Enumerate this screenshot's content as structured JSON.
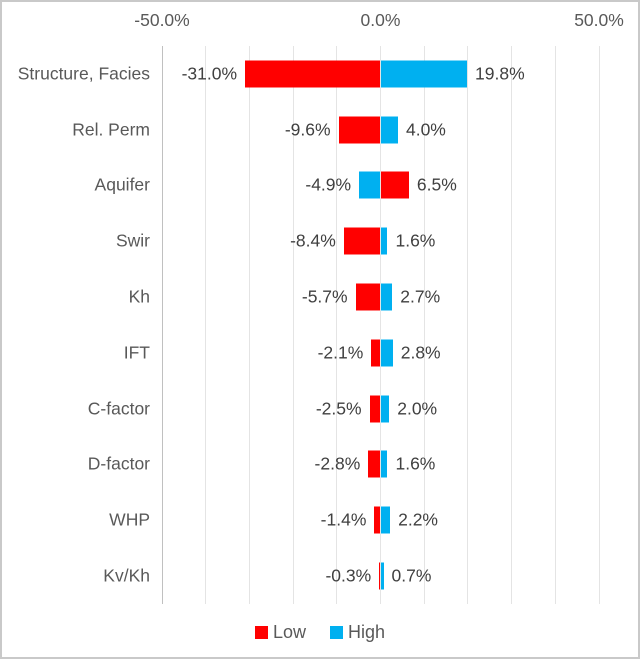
{
  "chart_data": {
    "type": "bar",
    "subtype": "tornado",
    "orientation": "horizontal",
    "title": "",
    "categories": [
      "Structure, Facies",
      "Rel. Perm",
      "Aquifer",
      "Swir",
      "Kh",
      "IFT",
      "C-factor",
      "D-factor",
      "WHP",
      "Kv/Kh"
    ],
    "series": [
      {
        "name": "Low",
        "color": "#ff0000",
        "values": [
          -31.0,
          -9.6,
          6.5,
          -8.4,
          -5.7,
          -2.1,
          -2.5,
          -2.8,
          -1.4,
          -0.3
        ]
      },
      {
        "name": "High",
        "color": "#00b0f0",
        "values": [
          19.8,
          4.0,
          -4.9,
          1.6,
          2.7,
          2.8,
          2.0,
          1.6,
          2.2,
          0.7
        ]
      }
    ],
    "data_labels": {
      "negative_side": [
        "-31.0%",
        "-9.6%",
        "-4.9%",
        "-8.4%",
        "-5.7%",
        "-2.1%",
        "-2.5%",
        "-2.8%",
        "-1.4%",
        "-0.3%"
      ],
      "positive_side": [
        "19.8%",
        "4.0%",
        "6.5%",
        "1.6%",
        "2.7%",
        "2.8%",
        "2.0%",
        "1.6%",
        "2.2%",
        "0.7%"
      ]
    },
    "x_axis": {
      "min": -50,
      "max": 50,
      "gridline_step": 10,
      "tick_labels": [
        "-50.0%",
        "0.0%",
        "50.0%"
      ],
      "tick_values": [
        -50,
        0,
        50
      ],
      "position": "top"
    },
    "legend": {
      "position": "bottom",
      "items": [
        {
          "label": "Low",
          "color": "#ff0000"
        },
        {
          "label": "High",
          "color": "#00b0f0"
        }
      ]
    },
    "grid": "vertical-only",
    "colors": {
      "low": "#ff0000",
      "high": "#00b0f0",
      "gridline": "#e4e4e4",
      "axis_line": "#c0c0c0",
      "text": "#595959",
      "value_text": "#404040",
      "frame_border": "#c9c9c9",
      "background": "#ffffff"
    }
  }
}
